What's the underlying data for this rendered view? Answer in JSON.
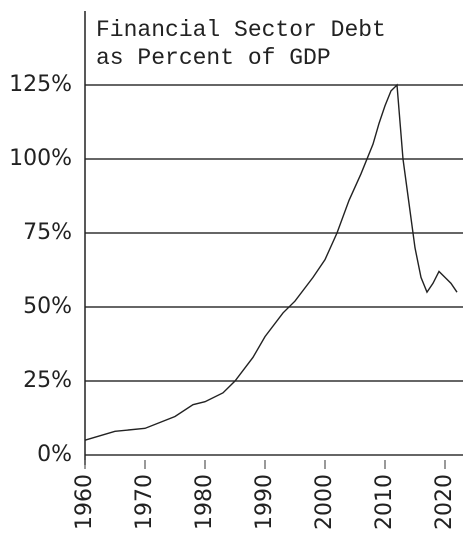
{
  "chart_data": {
    "type": "line",
    "title": [
      "Financial Sector Debt",
      "as Percent of GDP"
    ],
    "x": [
      1960,
      1965,
      1970,
      1975,
      1978,
      1980,
      1983,
      1985,
      1988,
      1990,
      1993,
      1995,
      1998,
      2000,
      2002,
      2004,
      2006,
      2008,
      2009,
      2010,
      2011,
      2012,
      2013,
      2014,
      2015,
      2016,
      2017,
      2018,
      2019,
      2020,
      2021,
      2022
    ],
    "series": [
      {
        "name": "Financial Sector Debt",
        "color": "#222222",
        "values": [
          5,
          8,
          9,
          13,
          17,
          18,
          21,
          25,
          33,
          40,
          48,
          52,
          60,
          66,
          75,
          86,
          95,
          105,
          112,
          118,
          123,
          125,
          100,
          85,
          70,
          60,
          55,
          58,
          62,
          60,
          58,
          55
        ]
      }
    ],
    "xlim": [
      1960,
      2023
    ],
    "xticks": [
      1960,
      1970,
      1980,
      1990,
      2000,
      2010,
      2020
    ],
    "ylim": [
      0,
      150
    ],
    "yticks": [
      {
        "value": 0,
        "label": "0%"
      },
      {
        "value": 25,
        "label": "25%"
      },
      {
        "value": 50,
        "label": "50%"
      },
      {
        "value": 75,
        "label": "75%"
      },
      {
        "value": 100,
        "label": "100%"
      },
      {
        "value": 125,
        "label": "125%"
      }
    ],
    "grid": true
  }
}
